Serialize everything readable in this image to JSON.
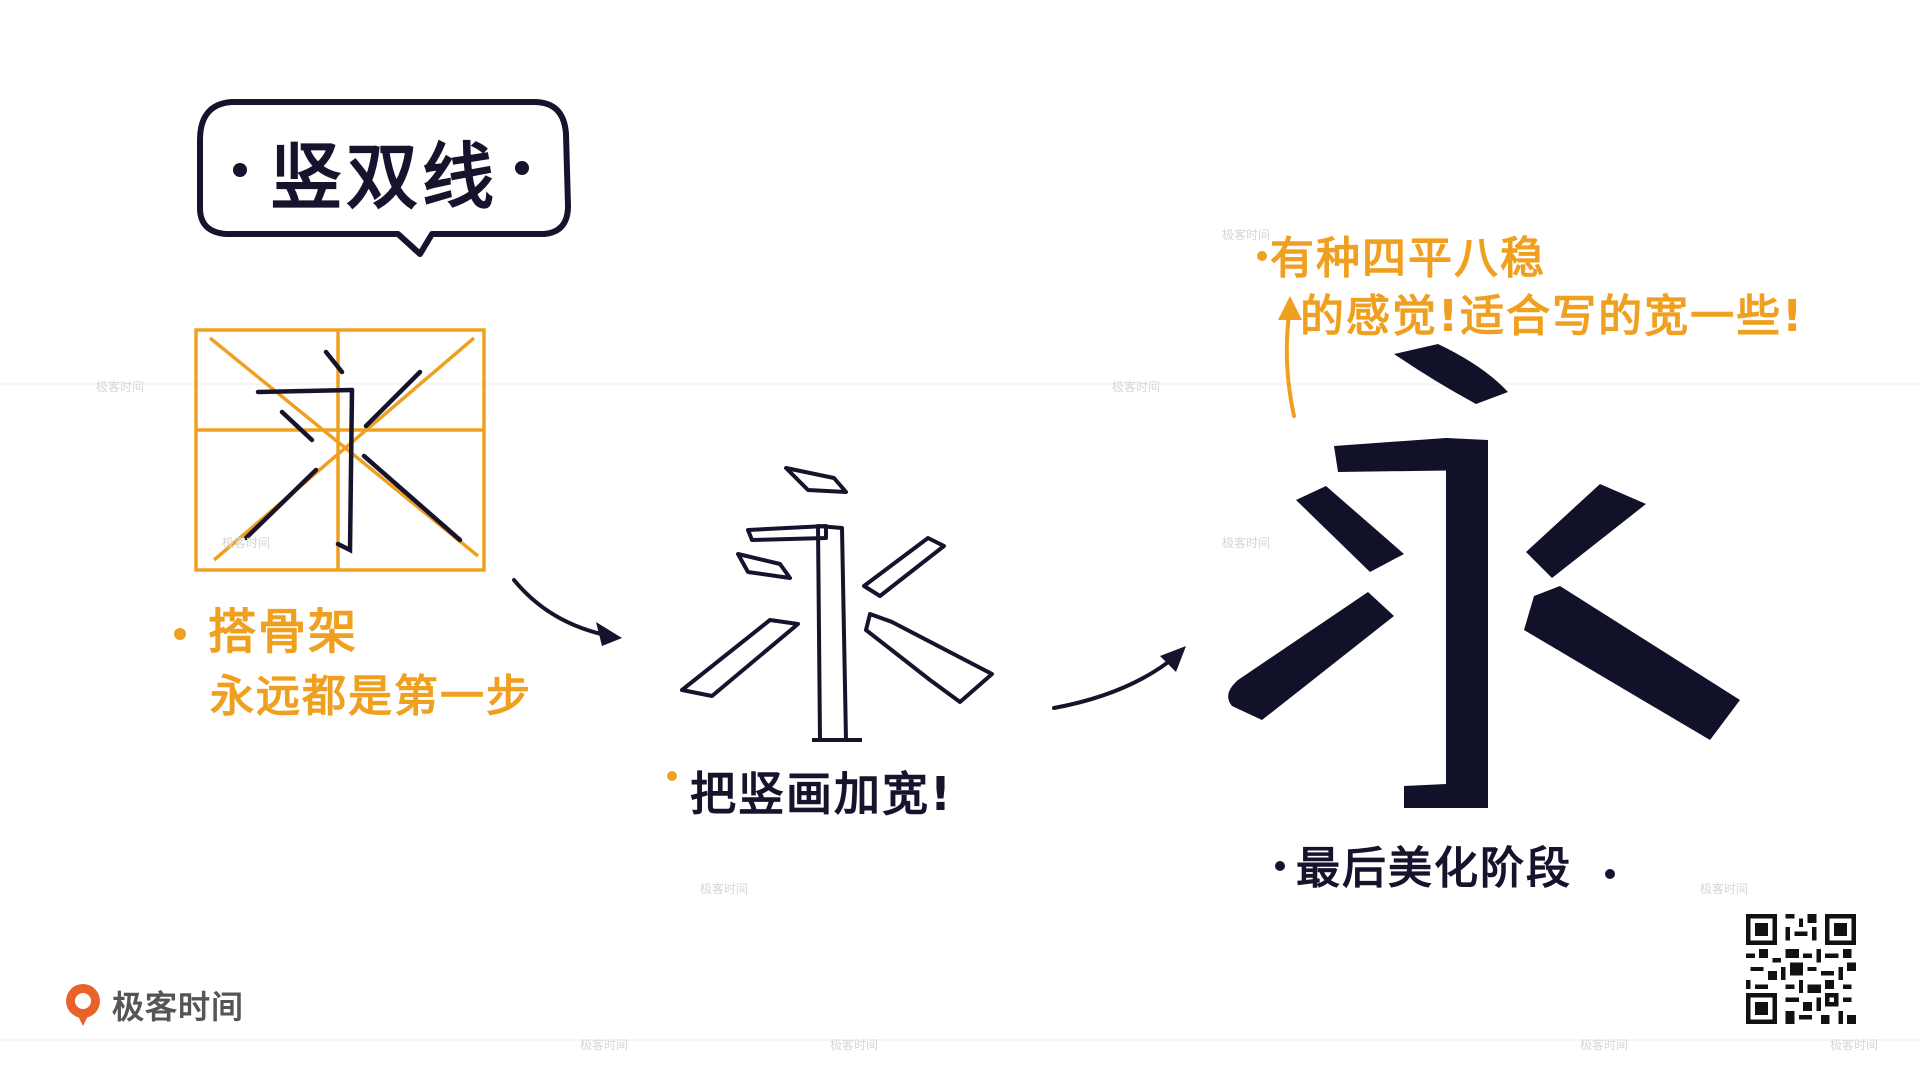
{
  "title": {
    "text": "竖双线"
  },
  "step1": {
    "line1": "搭骨架",
    "line2": "永远都是第一步"
  },
  "step2": {
    "label": "把竖画加宽!"
  },
  "step3": {
    "label": "最后美化阶段"
  },
  "note": {
    "line1": "有种四平八稳",
    "line2": "的感觉!适合写的宽一些!"
  },
  "brand": {
    "name": "极客时间",
    "icon": "geektime-logo-icon"
  },
  "watermark": {
    "text": "极客时间"
  },
  "colors": {
    "accent_orange": "#f0a020",
    "ink_navy": "#16142c",
    "brand_orange": "#e8622a"
  }
}
